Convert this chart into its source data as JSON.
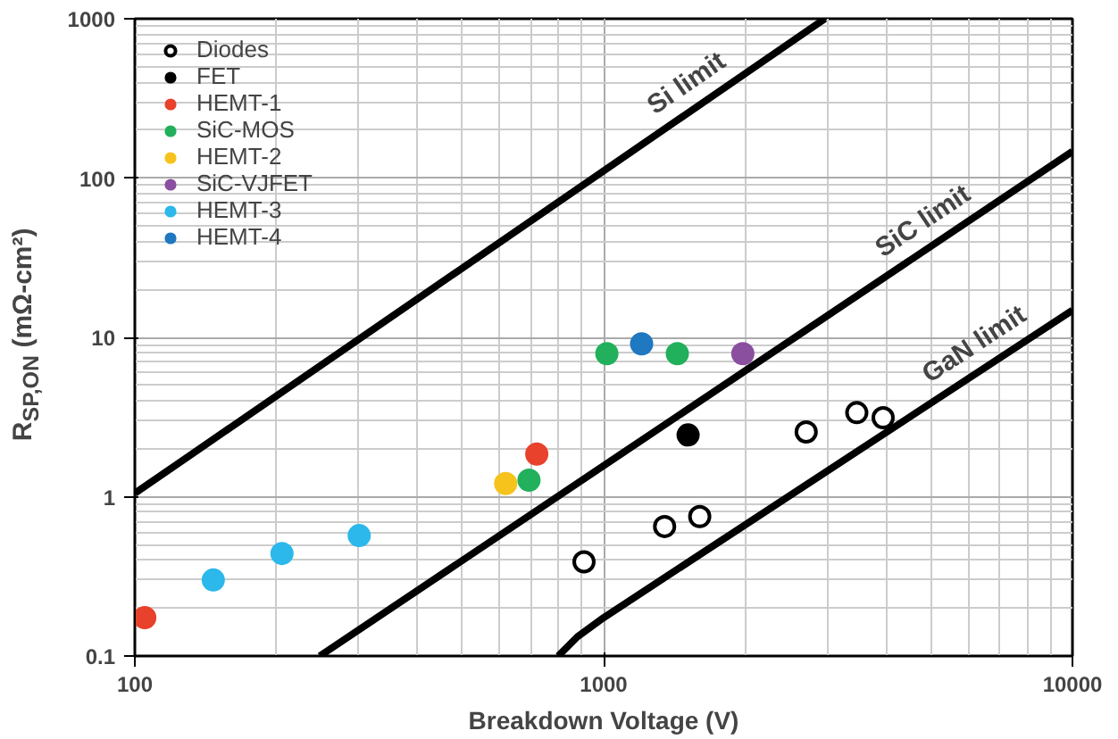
{
  "chart_data": {
    "type": "scatter",
    "xlabel": "Breakdown Voltage (V)",
    "ylabel": "R$_{SP,ON}$ (mΩ-cm²)",
    "log": "xy",
    "xlim": [
      100,
      10000
    ],
    "ylim": [
      0.1,
      1000
    ],
    "xticks": [
      100,
      1000,
      10000
    ],
    "yticks": [
      0.1,
      1,
      10,
      100,
      1000
    ],
    "grid": true,
    "legend": "top left",
    "marker": "circle",
    "series": [
      {
        "name": "Diodes",
        "color": "#000000",
        "marker": "circle_open",
        "x": [
          908,
          1349,
          1603,
          2704,
          3467,
          3946
        ],
        "values": [
          0.39,
          0.65,
          0.75,
          2.55,
          3.37,
          3.13
        ]
      },
      {
        "name": "FET",
        "color": "#000000",
        "x": [
          1514
        ],
        "values": [
          2.44
        ]
      },
      {
        "name": "HEMT-1",
        "color": "#e8412c",
        "x": [
          105,
          720
        ],
        "values": [
          0.174,
          1.85
        ]
      },
      {
        "name": "SiC-MOS",
        "color": "#22b05c",
        "x": [
          693,
          1016,
          1436
        ],
        "values": [
          1.27,
          7.9,
          7.9
        ]
      },
      {
        "name": "HEMT-2",
        "color": "#f6c31c",
        "x": [
          618
        ],
        "values": [
          1.21
        ]
      },
      {
        "name": "SiC-VJFET",
        "color": "#8b4fa0",
        "x": [
          1981
        ],
        "values": [
          7.9
        ]
      },
      {
        "name": "HEMT-3",
        "color": "#2cb8ea",
        "x": [
          147,
          206,
          301
        ],
        "values": [
          0.3,
          0.44,
          0.57
        ]
      },
      {
        "name": "HEMT-4",
        "color": "#1f78c0",
        "x": [
          1205
        ],
        "values": [
          9.1
        ]
      },
      {
        "type": "line",
        "name": "Si limit",
        "marker": "none",
        "color": "#000000",
        "x": [
          100,
          2965
        ],
        "values": [
          1.05,
          1000
        ]
      },
      {
        "type": "line",
        "name": "SiC limit",
        "marker": "none",
        "color": "#000000",
        "x": [
          248,
          10000
        ],
        "values": [
          0.1,
          147
        ]
      },
      {
        "type": "line",
        "name": "GaN limit",
        "marker": "none",
        "color": "#000000",
        "x": [
          800,
          879,
          1000,
          10000
        ],
        "values": [
          0.1,
          0.132,
          0.174,
          14.8
        ]
      }
    ]
  }
}
